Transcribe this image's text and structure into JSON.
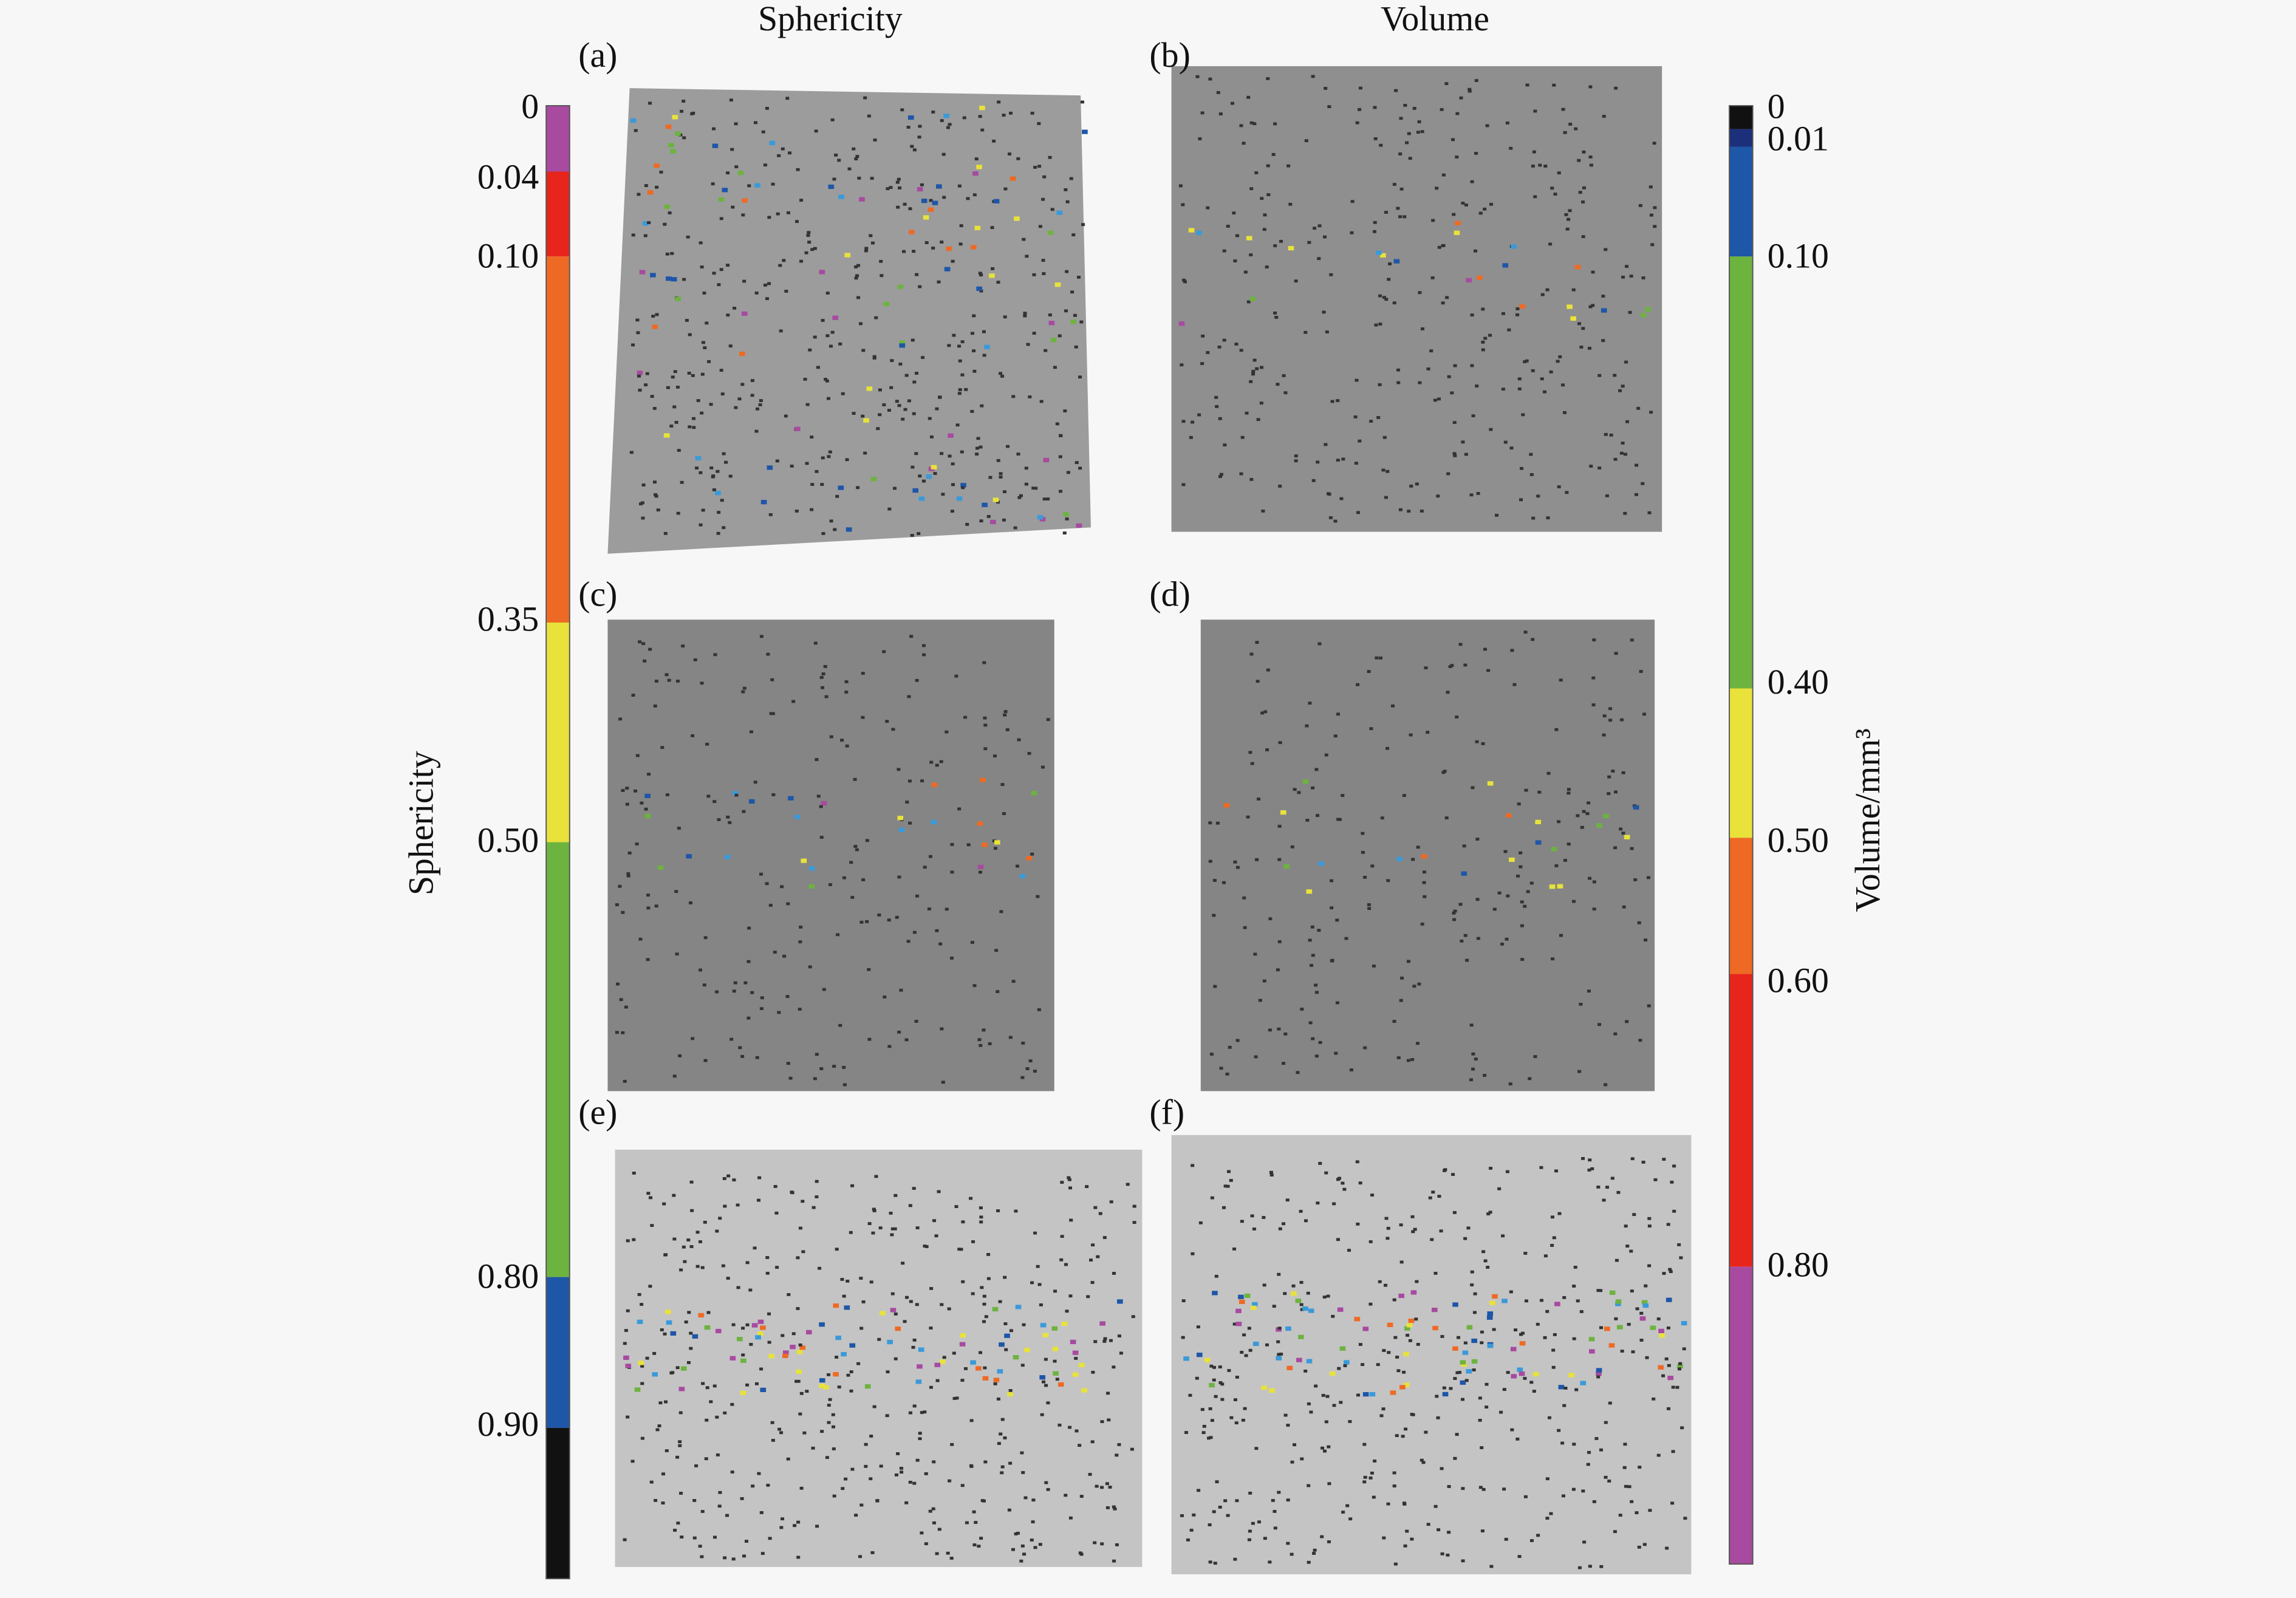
{
  "column_titles": [
    "Sphericity",
    "Volume"
  ],
  "panel_labels": [
    "(a)",
    "(b)",
    "(c)",
    "(d)",
    "(e)",
    "(f)"
  ],
  "sphericity_colorbar": {
    "title": "Sphericity",
    "ticks": [
      "0",
      "0.04",
      "0.10",
      "0.35",
      "0.50",
      "0.80",
      "0.90"
    ],
    "colors": [
      "#a74aa0",
      "#e8251c",
      "#ee6a24",
      "#e8e23a",
      "#6db33f",
      "#1e56a8",
      "#111111"
    ]
  },
  "volume_colorbar": {
    "title": "Volume/mm³",
    "ticks": [
      "0",
      "0.01",
      "0.10",
      "0.40",
      "0.50",
      "0.60",
      "0.80"
    ],
    "colors": [
      "#111111",
      "#1c2f7a",
      "#1e56a8",
      "#6db33f",
      "#e8e23a",
      "#ee6a24",
      "#e8251c",
      "#a74aa0"
    ]
  }
}
